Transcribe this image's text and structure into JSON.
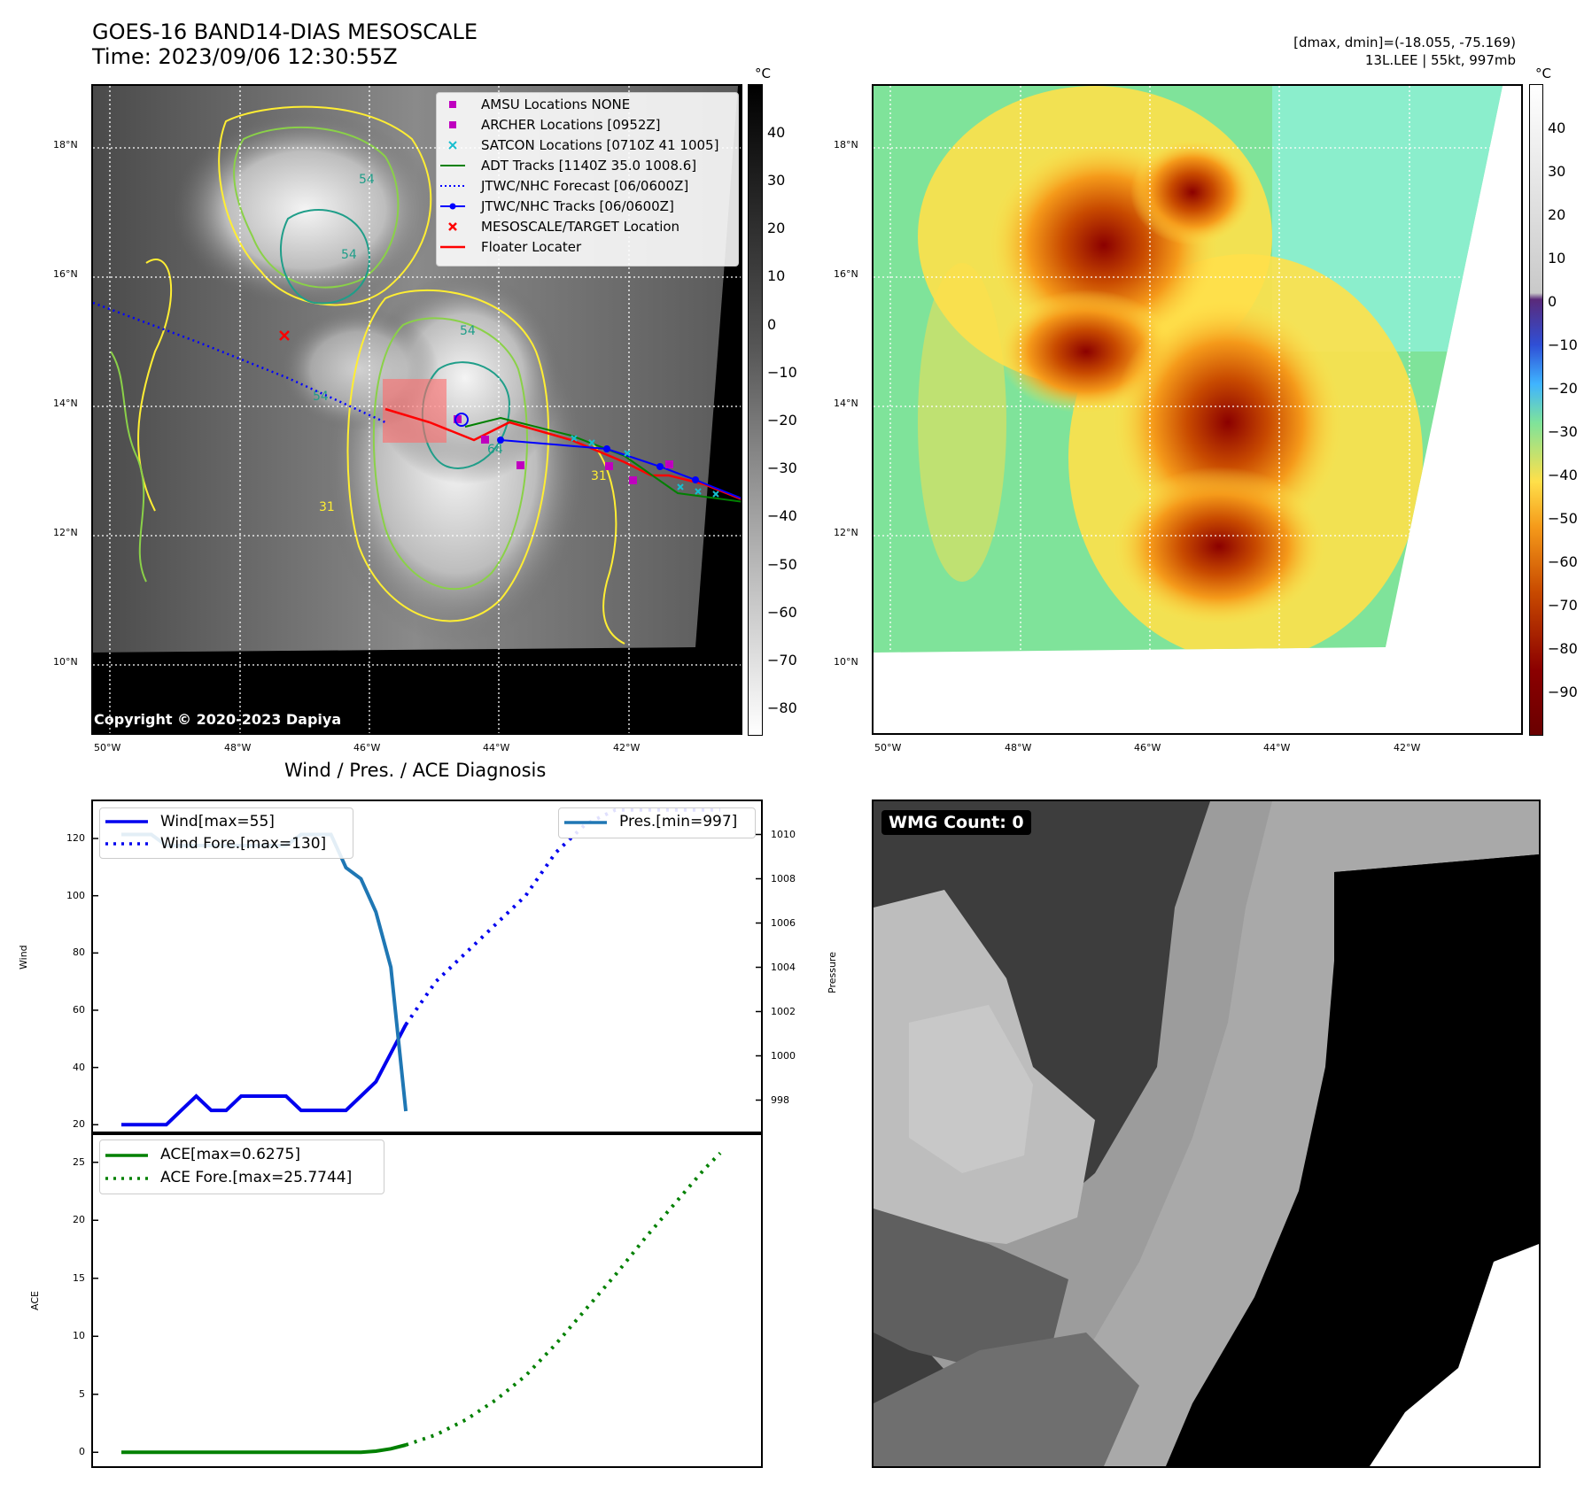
{
  "header": {
    "title_line1": "GOES-16 BAND14-DIAS MESOSCALE",
    "title_line2": "Time: 2023/09/06 12:30:55Z",
    "info_line1": "[dmax, dmin]=(-18.055, -75.169)",
    "info_line2": "13L.LEE | 55kt, 997mb"
  },
  "map": {
    "lat_labels": [
      "18°N",
      "16°N",
      "14°N",
      "12°N",
      "10°N"
    ],
    "lon_labels": [
      "50°W",
      "48°W",
      "46°W",
      "44°W",
      "42°W"
    ],
    "copyright": "Copyright © 2020-2023 Dapiya",
    "gray_colorbar": {
      "unit": "°C",
      "ticks": [
        "40",
        "30",
        "20",
        "10",
        "0",
        "−10",
        "−20",
        "−30",
        "−40",
        "−50",
        "−60",
        "−70",
        "−80"
      ]
    },
    "color_colorbar": {
      "unit": "°C",
      "ticks": [
        "40",
        "30",
        "20",
        "10",
        "0",
        "−10",
        "−20",
        "−30",
        "−40",
        "−50",
        "−60",
        "−70",
        "−80",
        "−90"
      ]
    },
    "contour_labels": [
      "54",
      "54",
      "54",
      "54",
      "31",
      "31",
      "64"
    ],
    "legend": [
      {
        "label": "AMSU Locations NONE",
        "marker": "square",
        "color": "#bf00bf"
      },
      {
        "label": "ARCHER Locations [0952Z]",
        "marker": "square",
        "color": "#bf00bf"
      },
      {
        "label": "SATCON Locations [0710Z 41 1005]",
        "marker": "x",
        "color": "#17becf"
      },
      {
        "label": "ADT Tracks [1140Z 35.0 1008.6]",
        "marker": "line",
        "color": "#008000"
      },
      {
        "label": "JTWC/NHC Forecast [06/0600Z]",
        "marker": "dotted",
        "color": "#0000ff"
      },
      {
        "label": "JTWC/NHC Tracks [06/0600Z]",
        "marker": "line-dot",
        "color": "#0000ff"
      },
      {
        "label": "MESOSCALE/TARGET Location",
        "marker": "x",
        "color": "#ff0000"
      },
      {
        "label": "Floater Locater",
        "marker": "line",
        "color": "#ff0000"
      }
    ]
  },
  "wmg": {
    "label": "WMG Count: 0"
  },
  "chart_data": [
    {
      "type": "line",
      "title": "Wind / Pres. / ACE Diagnosis",
      "ylabel": "Wind",
      "y2label": "Pressure",
      "ylim": [
        17,
        133
      ],
      "y2lim": [
        996.5,
        1011.5
      ],
      "yticks": [
        "20",
        "40",
        "60",
        "80",
        "100",
        "120"
      ],
      "y2ticks": [
        "998",
        "1000",
        "1002",
        "1004",
        "1006",
        "1008",
        "1010"
      ],
      "legend_left": [
        "Wind[max=55]",
        "Wind Fore.[max=130]"
      ],
      "legend_right": [
        "Pres.[min=997]"
      ],
      "x": [
        0,
        1,
        2,
        3,
        4,
        5,
        6,
        7,
        8,
        9,
        10,
        11,
        12,
        13,
        14,
        15,
        16,
        17,
        18,
        19,
        20,
        21,
        22,
        23,
        24,
        25,
        26,
        27,
        28,
        29,
        30,
        31,
        32,
        33,
        34,
        35,
        36,
        37,
        38,
        39,
        40
      ],
      "series": [
        {
          "name": "Wind[max=55]",
          "color": "#0000ee",
          "style": "solid",
          "x": [
            0,
            1,
            2,
            3,
            4,
            5,
            6,
            7,
            8,
            9,
            10,
            11,
            12,
            13,
            14,
            15,
            16,
            17,
            18,
            19
          ],
          "values": [
            20,
            20,
            20,
            20,
            25,
            30,
            25,
            25,
            30,
            30,
            30,
            30,
            25,
            25,
            25,
            25,
            30,
            35,
            45,
            55
          ]
        },
        {
          "name": "Wind Fore.[max=130]",
          "color": "#0000ee",
          "style": "dotted",
          "x": [
            19,
            21,
            23,
            25,
            27,
            29,
            31,
            33,
            35,
            37,
            39,
            40
          ],
          "values": [
            55,
            70,
            80,
            90,
            100,
            115,
            125,
            130,
            130,
            130,
            130,
            130
          ]
        },
        {
          "name": "Pres.[min=997]",
          "color": "#1f77b4",
          "style": "solid",
          "axis": "y2",
          "x": [
            0,
            1,
            2,
            3,
            4,
            5,
            6,
            7,
            8,
            9,
            10,
            11,
            12,
            13,
            14,
            15,
            16,
            17,
            18,
            19
          ],
          "values": [
            1010,
            1010,
            1010,
            1009.5,
            1009.5,
            1009.5,
            1009.5,
            1009.5,
            1009.5,
            1009.5,
            1009.5,
            1009.5,
            1010,
            1010,
            1010,
            1008.5,
            1008,
            1006.5,
            1004,
            997.5
          ]
        }
      ]
    },
    {
      "type": "line",
      "ylabel": "ACE",
      "ylim": [
        -1.2,
        27.5
      ],
      "yticks": [
        "0",
        "5",
        "10",
        "15",
        "20",
        "25"
      ],
      "legend": [
        "ACE[max=0.6275]",
        "ACE Fore.[max=25.7744]"
      ],
      "series": [
        {
          "name": "ACE[max=0.6275]",
          "color": "#008000",
          "style": "solid",
          "x": [
            0,
            2,
            4,
            6,
            8,
            10,
            12,
            14,
            16,
            17,
            18,
            19
          ],
          "values": [
            0,
            0,
            0,
            0,
            0,
            0,
            0,
            0,
            0,
            0.1,
            0.3,
            0.63
          ]
        },
        {
          "name": "ACE Fore.[max=25.7744]",
          "color": "#008000",
          "style": "dotted",
          "x": [
            19,
            21,
            23,
            25,
            27,
            29,
            31,
            33,
            35,
            37,
            39,
            40
          ],
          "values": [
            0.63,
            1.5,
            2.8,
            4.5,
            6.6,
            9.3,
            12.3,
            15.3,
            18.5,
            21.5,
            24.5,
            25.8
          ]
        }
      ]
    }
  ]
}
